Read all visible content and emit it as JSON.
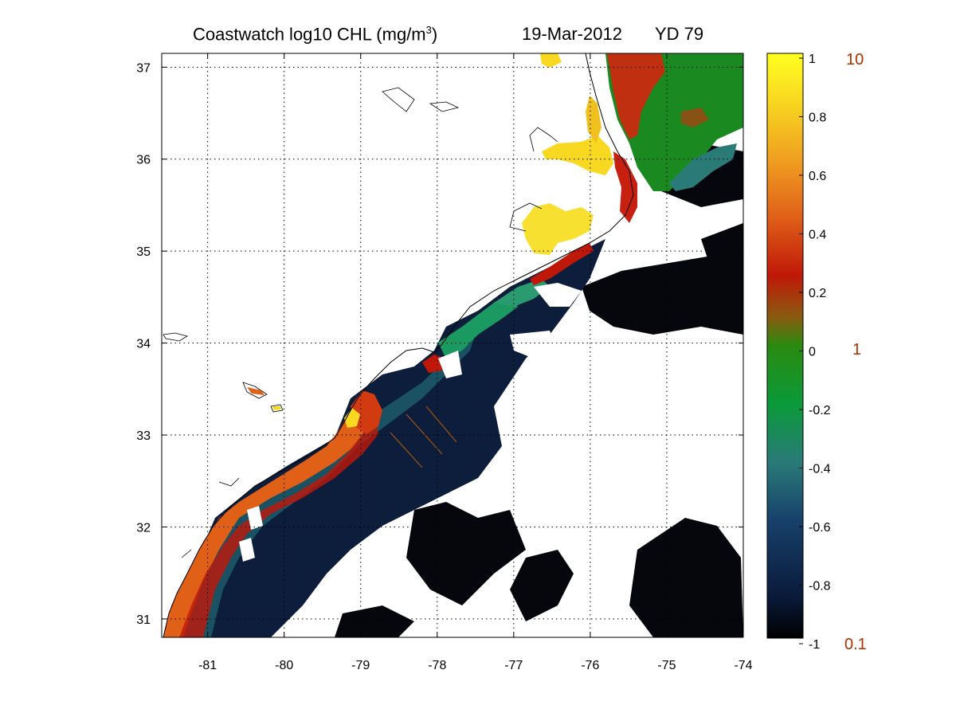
{
  "title": {
    "product_prefix": "Coastwatch  log10  CHL (mg/m",
    "unit_exponent": "3",
    "product_suffix": ")",
    "date": "19-Mar-2012",
    "yearday": "YD 79"
  },
  "map": {
    "lon_range": [
      -81.6,
      -74
    ],
    "lat_range": [
      30.8,
      37.15
    ],
    "lon_ticks": [
      "-81",
      "-80",
      "-79",
      "-78",
      "-77",
      "-76",
      "-75",
      "-74"
    ],
    "lat_ticks": [
      "31",
      "32",
      "33",
      "34",
      "35",
      "36",
      "37"
    ],
    "grid": "dotted",
    "land_color": "#ffffff",
    "coastline_color": "#000000",
    "track_color": "#a05010"
  },
  "colorbar": {
    "range": [
      -1,
      1
    ],
    "ticks": [
      "1",
      "0.8",
      "0.6",
      "0.4",
      "0.2",
      "0",
      "-0.2",
      "-0.4",
      "-0.6",
      "-0.8",
      "-1"
    ],
    "linear_labels": [
      "10",
      "1",
      "0.1"
    ],
    "colors": [
      "#000000",
      "#0a1a3a",
      "#17406a",
      "#2a7a78",
      "#0a9a3a",
      "#2a8a10",
      "#8a5a10",
      "#c01808",
      "#e06018",
      "#f0a020",
      "#f8d820",
      "#ffff20"
    ]
  }
}
